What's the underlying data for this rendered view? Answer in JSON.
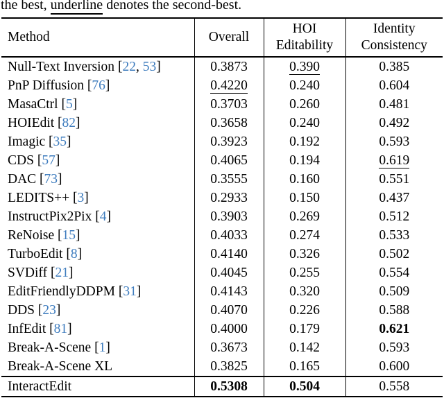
{
  "caption": {
    "prefix": "the best, ",
    "underlined_word": "underline",
    "suffix": " denotes the second-best."
  },
  "colors": {
    "citation": "#3E7CBE",
    "text": "#000000",
    "background": "#FFFFFF"
  },
  "table": {
    "headers": [
      "Method",
      "Overall",
      "HOI Editability",
      "Identity Consistency"
    ],
    "rows": [
      {
        "method": "Null-Text Inversion",
        "cites": [
          "22",
          "53"
        ],
        "values": [
          {
            "t": "0.3873"
          },
          {
            "t": "0.390",
            "u": true
          },
          {
            "t": "0.385"
          }
        ]
      },
      {
        "method": "PnP Diffusion",
        "cites": [
          "76"
        ],
        "values": [
          {
            "t": "0.4220",
            "u": true
          },
          {
            "t": "0.240"
          },
          {
            "t": "0.604"
          }
        ]
      },
      {
        "method": "MasaCtrl",
        "cites": [
          "5"
        ],
        "values": [
          {
            "t": "0.3703"
          },
          {
            "t": "0.260"
          },
          {
            "t": "0.481"
          }
        ]
      },
      {
        "method": "HOIEdit",
        "cites": [
          "82"
        ],
        "values": [
          {
            "t": "0.3658"
          },
          {
            "t": "0.240"
          },
          {
            "t": "0.492"
          }
        ]
      },
      {
        "method": "Imagic",
        "cites": [
          "35"
        ],
        "values": [
          {
            "t": "0.3923"
          },
          {
            "t": "0.192"
          },
          {
            "t": "0.593"
          }
        ]
      },
      {
        "method": "CDS",
        "cites": [
          "57"
        ],
        "values": [
          {
            "t": "0.4065"
          },
          {
            "t": "0.194"
          },
          {
            "t": "0.619",
            "u": true
          }
        ]
      },
      {
        "method": "DAC",
        "cites": [
          "73"
        ],
        "values": [
          {
            "t": "0.3555"
          },
          {
            "t": "0.160"
          },
          {
            "t": "0.551"
          }
        ]
      },
      {
        "method": "LEDITS++",
        "cites": [
          "3"
        ],
        "values": [
          {
            "t": "0.2933"
          },
          {
            "t": "0.150"
          },
          {
            "t": "0.437"
          }
        ]
      },
      {
        "method": "InstructPix2Pix",
        "cites": [
          "4"
        ],
        "values": [
          {
            "t": "0.3903"
          },
          {
            "t": "0.269"
          },
          {
            "t": "0.512"
          }
        ]
      },
      {
        "method": "ReNoise",
        "cites": [
          "15"
        ],
        "values": [
          {
            "t": "0.4033"
          },
          {
            "t": "0.274"
          },
          {
            "t": "0.533"
          }
        ]
      },
      {
        "method": "TurboEdit",
        "cites": [
          "8"
        ],
        "values": [
          {
            "t": "0.4140"
          },
          {
            "t": "0.326"
          },
          {
            "t": "0.502"
          }
        ]
      },
      {
        "method": "SVDiff",
        "cites": [
          "21"
        ],
        "values": [
          {
            "t": "0.4045"
          },
          {
            "t": "0.255"
          },
          {
            "t": "0.554"
          }
        ]
      },
      {
        "method": "EditFriendlyDDPM",
        "cites": [
          "31"
        ],
        "values": [
          {
            "t": "0.4143"
          },
          {
            "t": "0.320"
          },
          {
            "t": "0.509"
          }
        ]
      },
      {
        "method": "DDS",
        "cites": [
          "23"
        ],
        "values": [
          {
            "t": "0.4070"
          },
          {
            "t": "0.226"
          },
          {
            "t": "0.588"
          }
        ]
      },
      {
        "method": "InfEdit",
        "cites": [
          "81"
        ],
        "values": [
          {
            "t": "0.4000"
          },
          {
            "t": "0.179"
          },
          {
            "t": "0.621",
            "b": true
          }
        ]
      },
      {
        "method": "Break-A-Scene",
        "cites": [
          "1"
        ],
        "values": [
          {
            "t": "0.3673"
          },
          {
            "t": "0.142"
          },
          {
            "t": "0.593"
          }
        ]
      },
      {
        "method": "Break-A-Scene XL",
        "cites": [],
        "values": [
          {
            "t": "0.3825"
          },
          {
            "t": "0.165"
          },
          {
            "t": "0.600"
          }
        ]
      },
      {
        "method": "InteractEdit",
        "cites": [],
        "final": true,
        "values": [
          {
            "t": "0.5308",
            "b": true
          },
          {
            "t": "0.504",
            "b": true
          },
          {
            "t": "0.558"
          }
        ]
      }
    ]
  }
}
